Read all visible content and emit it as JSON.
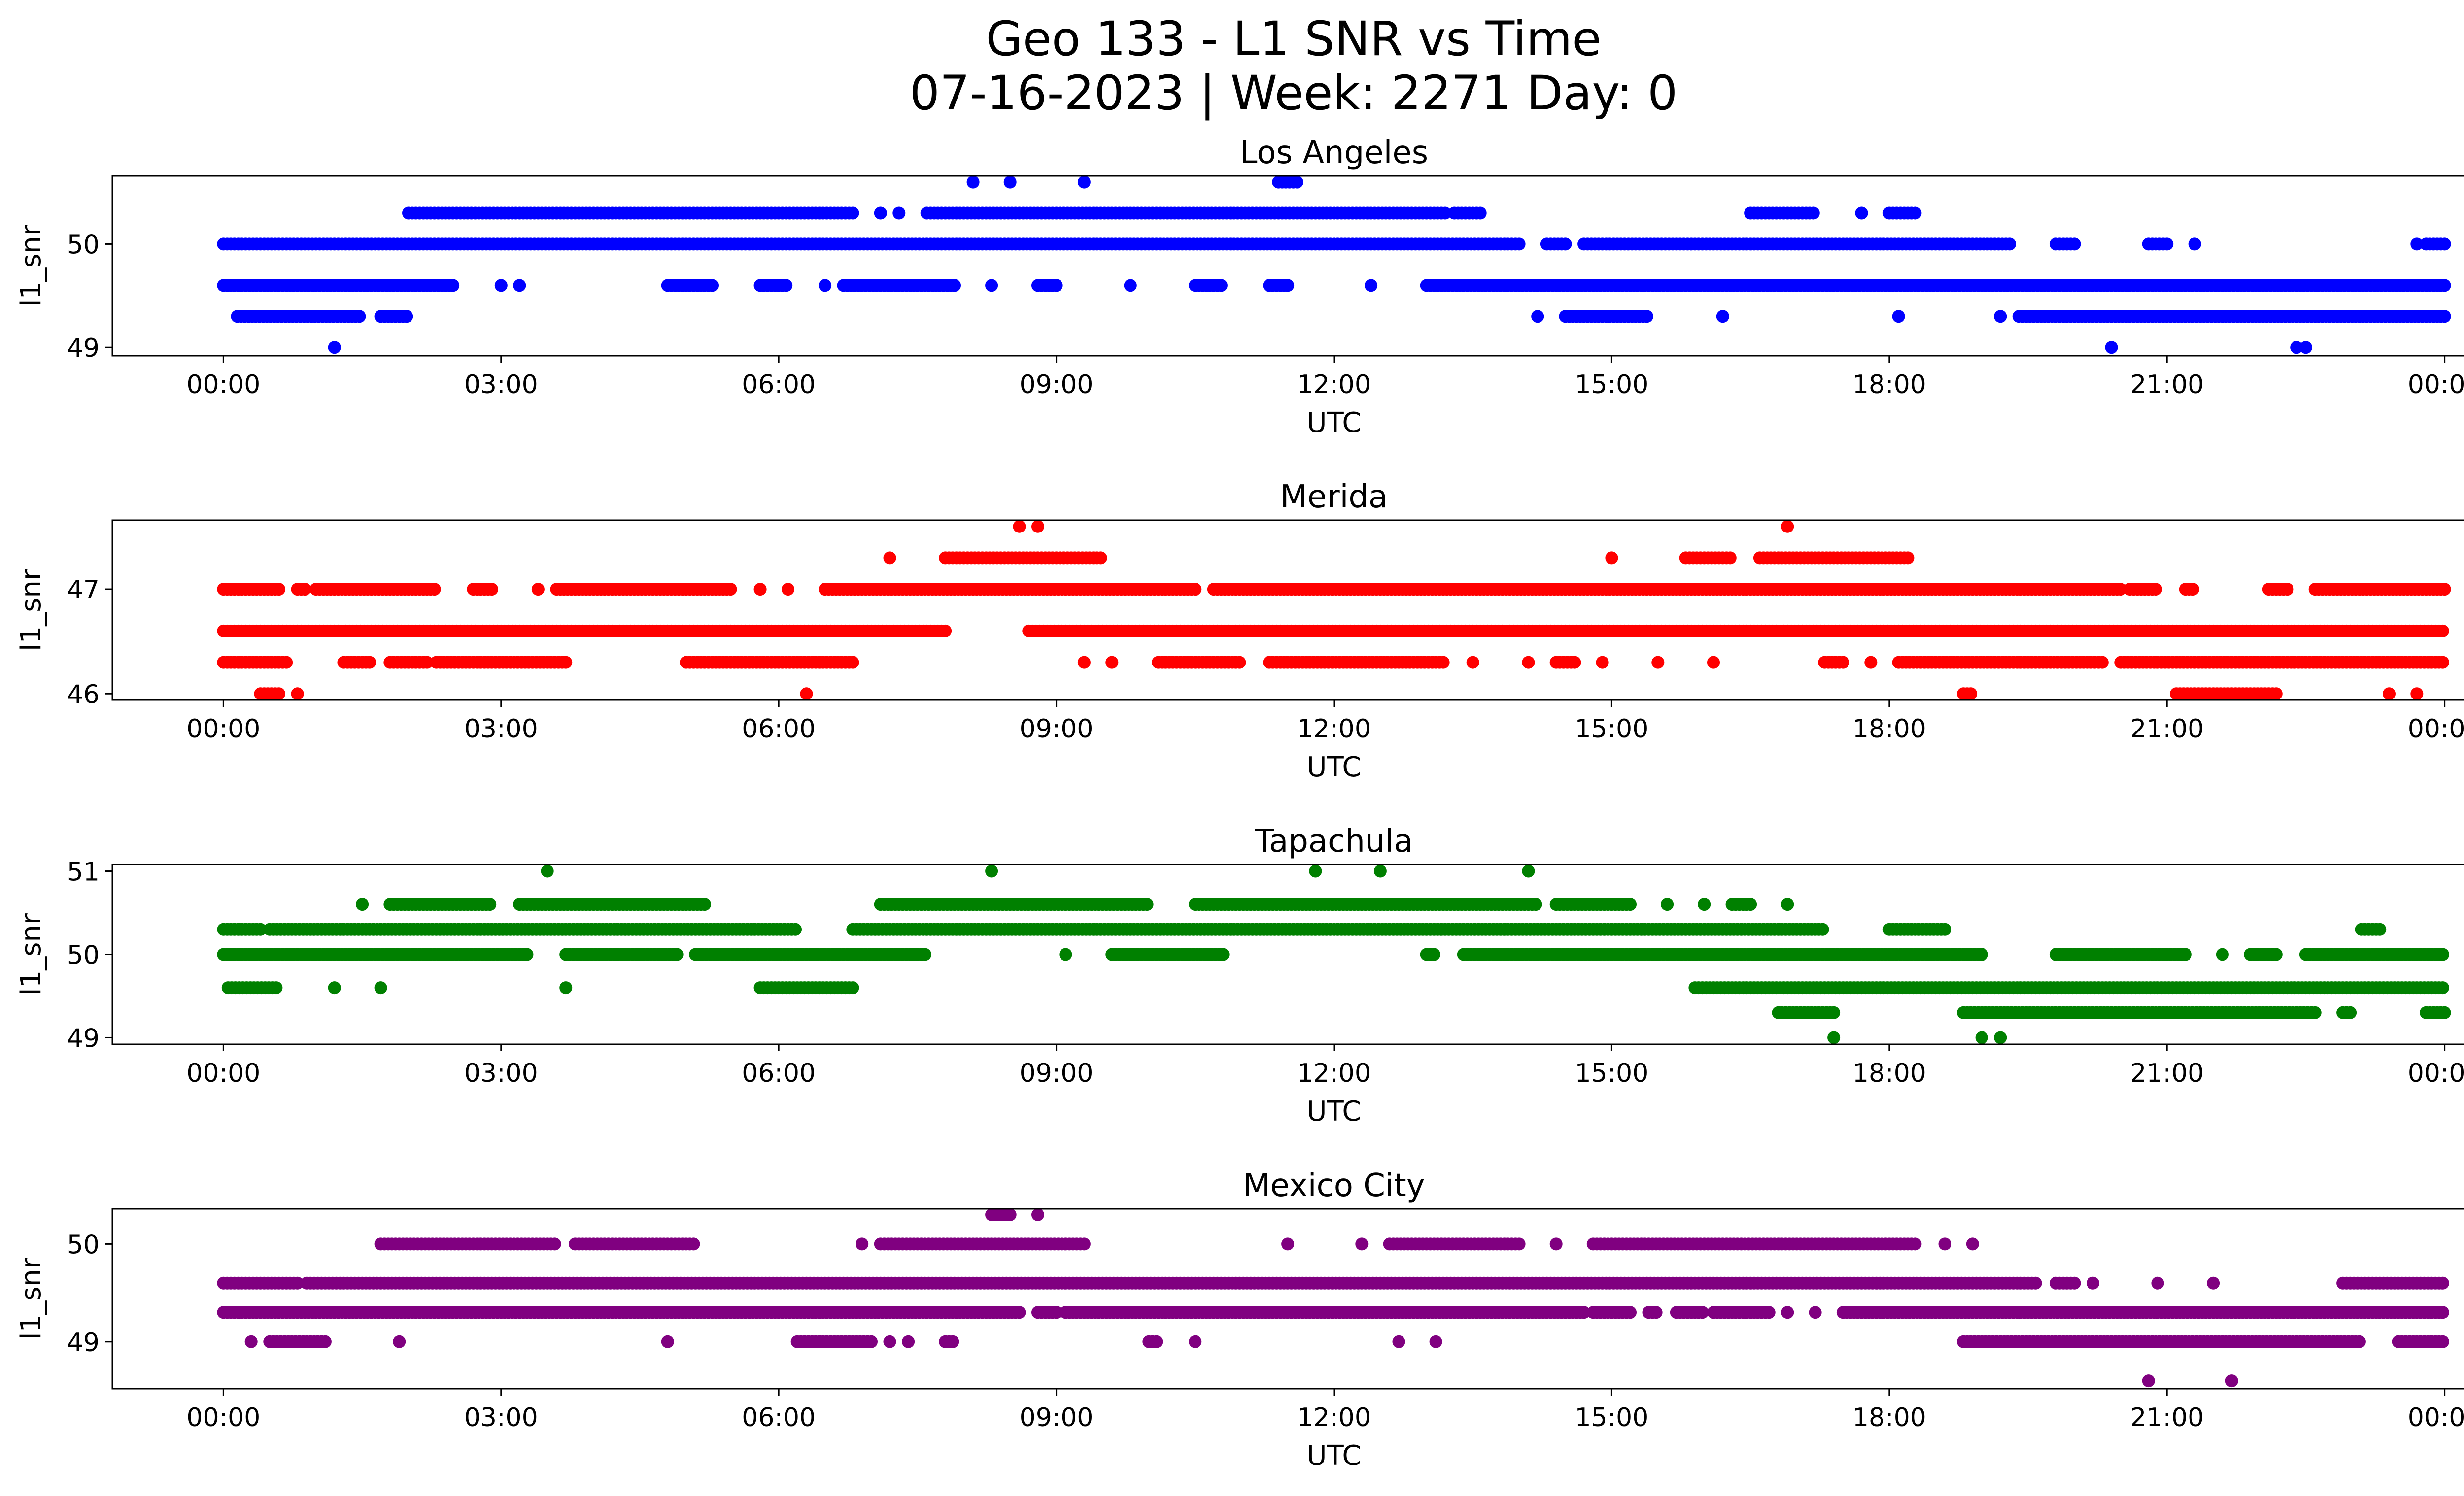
{
  "figure": {
    "title_line1": "Geo 133 - L1 SNR vs Time",
    "title_line2": "07-16-2023 | Week: 2271 Day: 0"
  },
  "chart_data": [
    {
      "type": "scatter",
      "title": "Los Angeles",
      "xlabel": "UTC",
      "ylabel": "l1_snr",
      "color": "#0000ff",
      "xlim": [
        -1.2,
        25.2
      ],
      "ylim": [
        48.92,
        50.66
      ],
      "xticks": [
        "00:00",
        "03:00",
        "06:00",
        "09:00",
        "12:00",
        "15:00",
        "18:00",
        "21:00",
        "00:00"
      ],
      "yticks": [
        49,
        50
      ],
      "levels": [
        {
          "y": 49.0,
          "x": [
            1.2,
            20.4,
            22.4,
            22.5
          ]
        },
        {
          "y": 49.3,
          "x": [
            [
              0.15,
              1.5
            ],
            [
              1.7,
              2.0
            ],
            14.2,
            [
              14.5,
              15.4
            ],
            16.2,
            18.1,
            19.2,
            [
              19.4,
              24.0
            ]
          ]
        },
        {
          "y": 49.6,
          "x": [
            [
              0.0,
              2.5
            ],
            3.0,
            3.2,
            [
              4.8,
              5.3
            ],
            [
              5.8,
              6.1
            ],
            6.5,
            [
              6.7,
              7.9
            ],
            8.3,
            [
              8.8,
              9.0
            ],
            9.8,
            [
              10.5,
              10.8
            ],
            [
              11.3,
              11.5
            ],
            12.4,
            [
              13.0,
              24.0
            ]
          ]
        },
        {
          "y": 50.0,
          "x": [
            [
              0.0,
              14.0
            ],
            [
              14.3,
              14.5
            ],
            [
              14.7,
              19.3
            ],
            [
              19.8,
              20.0
            ],
            [
              20.8,
              21.0
            ],
            21.3,
            23.7,
            [
              23.8,
              24.0
            ]
          ]
        },
        {
          "y": 50.3,
          "x": [
            [
              2.0,
              6.8
            ],
            7.1,
            7.3,
            [
              7.6,
              13.2
            ],
            [
              13.3,
              13.6
            ],
            [
              16.5,
              17.2
            ],
            17.7,
            [
              18.0,
              18.3
            ]
          ]
        },
        {
          "y": 50.6,
          "x": [
            8.1,
            8.5,
            9.3,
            [
              11.4,
              11.6
            ]
          ]
        }
      ]
    },
    {
      "type": "scatter",
      "title": "Merida",
      "xlabel": "UTC",
      "ylabel": "l1_snr",
      "color": "#ff0000",
      "xlim": [
        -1.2,
        25.2
      ],
      "ylim": [
        45.94,
        47.66
      ],
      "xticks": [
        "00:00",
        "03:00",
        "06:00",
        "09:00",
        "12:00",
        "15:00",
        "18:00",
        "21:00",
        "00:00"
      ],
      "yticks": [
        46,
        47
      ],
      "levels": [
        {
          "y": 46.0,
          "x": [
            [
              0.4,
              0.6
            ],
            0.8,
            6.3,
            [
              18.8,
              18.9
            ],
            [
              21.1,
              22.2
            ],
            23.4,
            23.7
          ]
        },
        {
          "y": 46.3,
          "x": [
            [
              0.0,
              0.7
            ],
            [
              1.3,
              1.6
            ],
            [
              1.8,
              2.2
            ],
            [
              2.3,
              3.7
            ],
            [
              5.0,
              6.8
            ],
            9.3,
            9.6,
            [
              10.1,
              11.0
            ],
            [
              11.3,
              13.2
            ],
            13.5,
            14.1,
            [
              14.4,
              14.6
            ],
            14.9,
            15.5,
            16.1,
            [
              17.3,
              17.5
            ],
            17.8,
            [
              18.1,
              20.3
            ],
            [
              20.5,
              24.0
            ]
          ]
        },
        {
          "y": 46.6,
          "x": [
            [
              0.0,
              7.8
            ],
            [
              8.7,
              24.0
            ]
          ]
        },
        {
          "y": 47.0,
          "x": [
            [
              0.0,
              0.6
            ],
            [
              0.8,
              0.9
            ],
            [
              1.0,
              2.3
            ],
            [
              2.7,
              2.9
            ],
            3.4,
            [
              3.6,
              5.5
            ],
            5.8,
            6.1,
            [
              6.5,
              10.5
            ],
            [
              10.7,
              20.5
            ],
            [
              20.6,
              20.9
            ],
            [
              21.2,
              21.3
            ],
            [
              22.1,
              22.3
            ],
            [
              22.6,
              24.0
            ]
          ]
        },
        {
          "y": 47.3,
          "x": [
            7.2,
            [
              7.8,
              9.5
            ],
            15.0,
            [
              15.8,
              16.3
            ],
            [
              16.6,
              18.2
            ]
          ]
        },
        {
          "y": 47.6,
          "x": [
            8.6,
            8.8,
            16.9
          ]
        }
      ]
    },
    {
      "type": "scatter",
      "title": "Tapachula",
      "xlabel": "UTC",
      "ylabel": "l1_snr",
      "color": "#008000",
      "xlim": [
        -1.2,
        25.2
      ],
      "ylim": [
        48.92,
        51.08
      ],
      "xticks": [
        "00:00",
        "03:00",
        "06:00",
        "09:00",
        "12:00",
        "15:00",
        "18:00",
        "21:00",
        "00:00"
      ],
      "yticks": [
        49,
        50,
        51
      ],
      "levels": [
        {
          "y": 49.0,
          "x": [
            17.4,
            19.0,
            19.2
          ]
        },
        {
          "y": 49.3,
          "x": [
            [
              16.8,
              17.4
            ],
            [
              18.8,
              22.6
            ],
            [
              22.9,
              23.0
            ],
            [
              23.8,
              24.0
            ]
          ]
        },
        {
          "y": 49.6,
          "x": [
            [
              0.05,
              0.6
            ],
            1.2,
            1.7,
            3.7,
            [
              5.8,
              6.8
            ],
            [
              15.9,
              24.0
            ]
          ]
        },
        {
          "y": 50.0,
          "x": [
            [
              0.0,
              3.3
            ],
            [
              3.7,
              4.9
            ],
            [
              5.1,
              7.6
            ],
            9.1,
            [
              9.6,
              10.8
            ],
            [
              13.0,
              13.1
            ],
            [
              13.4,
              19.0
            ],
            [
              19.8,
              21.2
            ],
            21.6,
            [
              21.9,
              22.2
            ],
            [
              22.5,
              24.0
            ]
          ]
        },
        {
          "y": 50.3,
          "x": [
            [
              0.0,
              0.4
            ],
            [
              0.5,
              6.2
            ],
            [
              6.8,
              17.3
            ],
            [
              18.0,
              18.6
            ],
            [
              23.1,
              23.3
            ]
          ]
        },
        {
          "y": 50.6,
          "x": [
            1.5,
            [
              1.8,
              2.9
            ],
            [
              3.2,
              5.2
            ],
            [
              7.1,
              10.0
            ],
            [
              10.5,
              14.2
            ],
            [
              14.4,
              15.2
            ],
            15.6,
            16.0,
            [
              16.3,
              16.5
            ],
            16.9
          ]
        },
        {
          "y": 51.0,
          "x": [
            3.5,
            8.3,
            11.8,
            12.5,
            14.1
          ]
        }
      ]
    },
    {
      "type": "scatter",
      "title": "Mexico City",
      "xlabel": "UTC",
      "ylabel": "l1_snr",
      "color": "#800080",
      "xlim": [
        -1.2,
        25.2
      ],
      "ylim": [
        48.52,
        50.36
      ],
      "xticks": [
        "00:00",
        "03:00",
        "06:00",
        "09:00",
        "12:00",
        "15:00",
        "18:00",
        "21:00",
        "00:00"
      ],
      "yticks": [
        49,
        50
      ],
      "levels": [
        {
          "y": 48.6,
          "x": [
            20.8,
            21.7
          ]
        },
        {
          "y": 49.0,
          "x": [
            0.3,
            [
              0.5,
              1.1
            ],
            1.9,
            4.8,
            [
              6.2,
              7.0
            ],
            7.2,
            7.4,
            [
              7.8,
              7.9
            ],
            [
              10.0,
              10.1
            ],
            10.5,
            12.7,
            13.1,
            [
              18.8,
              23.1
            ],
            [
              23.5,
              24.0
            ]
          ]
        },
        {
          "y": 49.3,
          "x": [
            [
              0.0,
              8.6
            ],
            [
              8.8,
              9.0
            ],
            [
              9.1,
              14.7
            ],
            [
              14.8,
              15.2
            ],
            [
              15.4,
              15.5
            ],
            [
              15.7,
              16.0
            ],
            [
              16.1,
              16.7
            ],
            16.9,
            17.2,
            [
              17.5,
              24.0
            ]
          ]
        },
        {
          "y": 49.6,
          "x": [
            [
              0.0,
              0.8
            ],
            [
              0.9,
              19.6
            ],
            [
              19.8,
              20.0
            ],
            20.2,
            20.9,
            21.5,
            [
              22.9,
              24.0
            ]
          ]
        },
        {
          "y": 50.0,
          "x": [
            [
              1.7,
              3.6
            ],
            [
              3.8,
              5.1
            ],
            6.9,
            [
              7.1,
              9.3
            ],
            11.5,
            12.3,
            [
              12.6,
              14.0
            ],
            14.4,
            [
              14.8,
              18.3
            ],
            18.6,
            18.9
          ]
        },
        {
          "y": 50.3,
          "x": [
            [
              8.3,
              8.5
            ],
            8.8
          ]
        }
      ]
    }
  ]
}
